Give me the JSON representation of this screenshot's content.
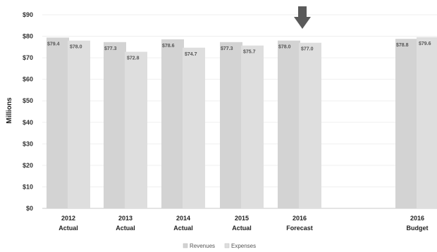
{
  "chart_data": {
    "type": "bar",
    "ylabel": "Millions",
    "ylim": [
      0,
      90
    ],
    "y_ticks": [
      "$0",
      "$10",
      "$20",
      "$30",
      "$40",
      "$50",
      "$60",
      "$70",
      "$80",
      "$90"
    ],
    "categories": [
      {
        "year": "2012",
        "kind": "Actual"
      },
      {
        "year": "2013",
        "kind": "Actual"
      },
      {
        "year": "2014",
        "kind": "Actual"
      },
      {
        "year": "2015",
        "kind": "Actual"
      },
      {
        "year": "2016",
        "kind": "Forecast"
      },
      {
        "year": "2016",
        "kind": "Budget"
      }
    ],
    "series": [
      {
        "name": "Revenues",
        "values": [
          79.4,
          77.3,
          78.6,
          77.3,
          78.0,
          78.8
        ],
        "labels": [
          "$79.4",
          "$77.3",
          "$78.6",
          "$77.3",
          "$78.0",
          "$78.8"
        ],
        "color": "#d3d3d3"
      },
      {
        "name": "Expenses",
        "values": [
          78.0,
          72.8,
          74.7,
          75.7,
          77.0,
          79.6
        ],
        "labels": [
          "$78.0",
          "$72.8",
          "$74.7",
          "$75.7",
          "$77.0",
          "$79.6"
        ],
        "color": "#dedede"
      }
    ],
    "highlight": {
      "category_index": 4,
      "arrow_color": "#5a5a5a"
    },
    "grid": true,
    "legend_position": "bottom"
  }
}
